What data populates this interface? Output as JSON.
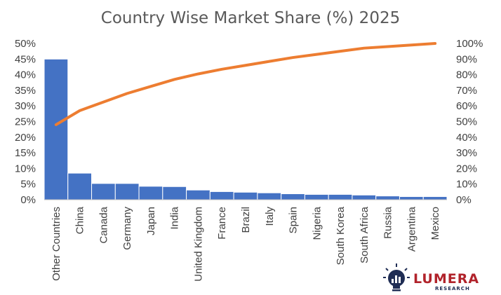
{
  "chart_data": {
    "type": "bar",
    "title": "Country Wise Market Share (%) 2025",
    "categories": [
      "Other Countries",
      "China",
      "Canada",
      "Germany",
      "Japan",
      "India",
      "United Kingdom",
      "France",
      "Brazil",
      "Italy",
      "Spain",
      "Nigeria",
      "South Korea",
      "South Africa",
      "Russia",
      "Argentina",
      "Mexico"
    ],
    "series": [
      {
        "type": "bar",
        "axis": "left",
        "color": "#4472c4",
        "values": [
          45.0,
          8.5,
          5.2,
          5.2,
          4.3,
          4.2,
          3.1,
          2.6,
          2.4,
          2.2,
          1.9,
          1.7,
          1.7,
          1.5,
          1.2,
          1.0,
          1.0
        ]
      },
      {
        "type": "line",
        "axis": "right",
        "color": "#ed7d31",
        "values": [
          48.0,
          57.0,
          62.5,
          68.0,
          72.5,
          77.0,
          80.5,
          83.5,
          86.0,
          88.5,
          91.0,
          93.0,
          95.0,
          97.0,
          98.0,
          99.0,
          100.0
        ]
      }
    ],
    "y_left": {
      "min": 0,
      "max": 50,
      "step": 5,
      "ticks": [
        "0%",
        "5%",
        "10%",
        "15%",
        "20%",
        "25%",
        "30%",
        "35%",
        "40%",
        "45%",
        "50%"
      ]
    },
    "y_right": {
      "min": 0,
      "max": 100,
      "step": 10,
      "ticks": [
        "0%",
        "10%",
        "20%",
        "30%",
        "40%",
        "50%",
        "60%",
        "70%",
        "80%",
        "90%",
        "100%"
      ]
    },
    "grid": false,
    "legend": "none"
  },
  "logo": {
    "name": "LUMERA",
    "sub": "RESEARCH",
    "name_color": "#b1232b",
    "icon_color": "#1f2d54"
  }
}
